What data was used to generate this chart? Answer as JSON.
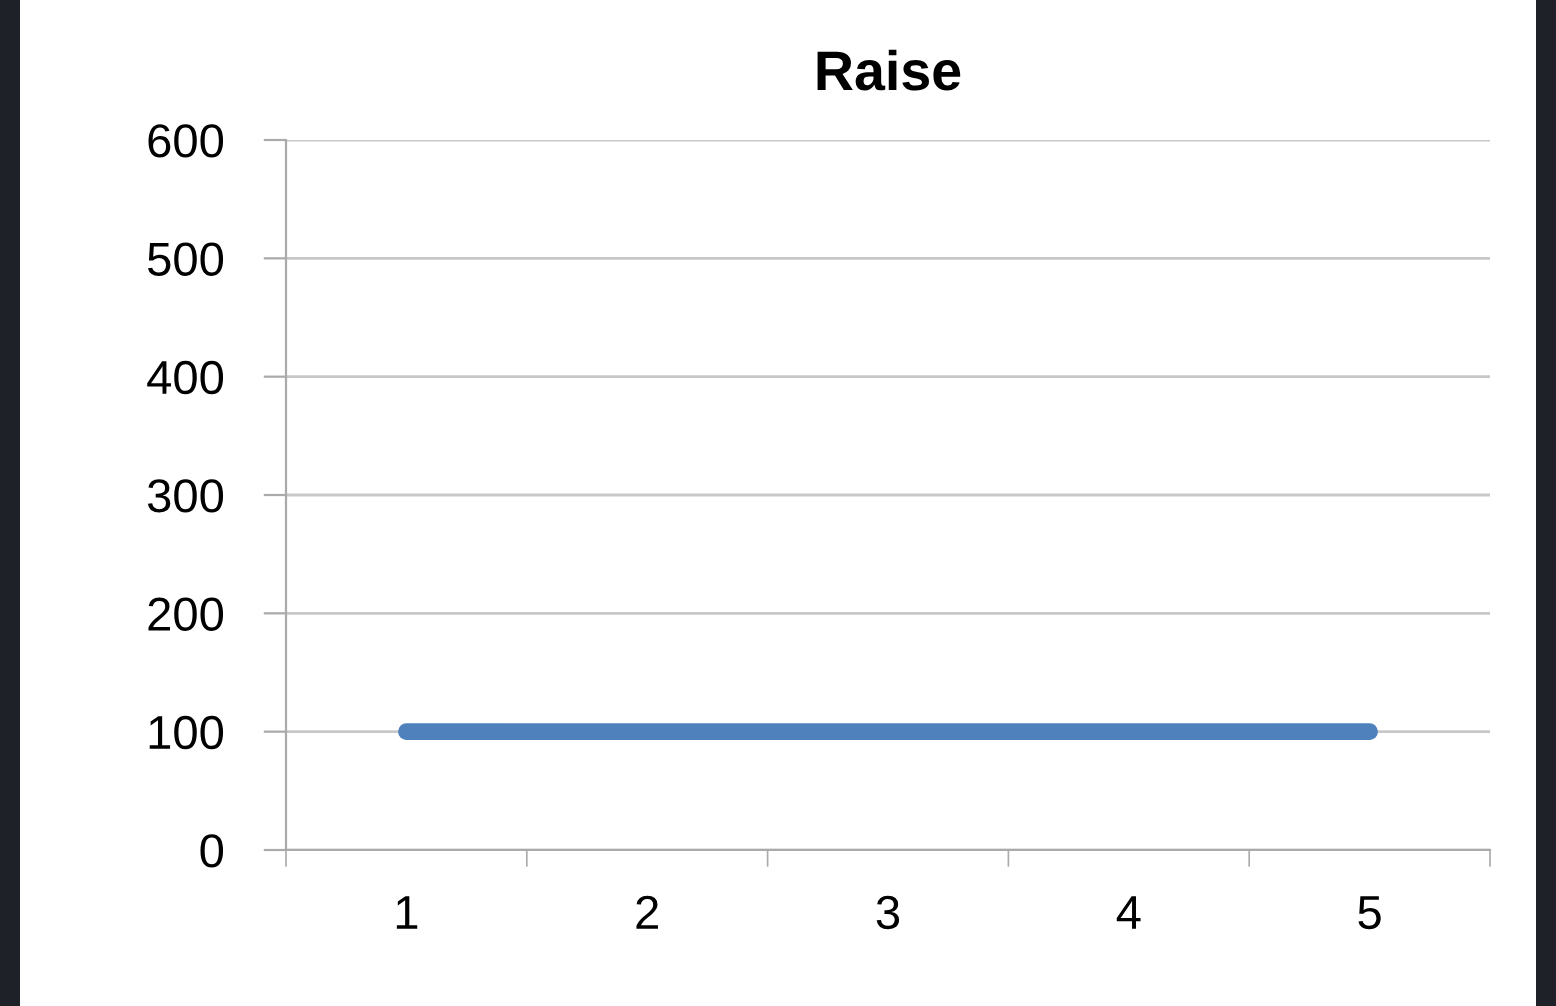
{
  "chart_data": {
    "type": "line",
    "title": "Raise",
    "categories": [
      "1",
      "2",
      "3",
      "4",
      "5"
    ],
    "series": [
      {
        "color": "#4f81bd",
        "values": [
          100,
          100,
          100,
          100,
          100
        ]
      }
    ],
    "ylim": [
      0,
      600
    ],
    "yticks": [
      0,
      100,
      200,
      300,
      400,
      500,
      600
    ],
    "grid": "y",
    "marker": "none",
    "line_style": "solid"
  }
}
